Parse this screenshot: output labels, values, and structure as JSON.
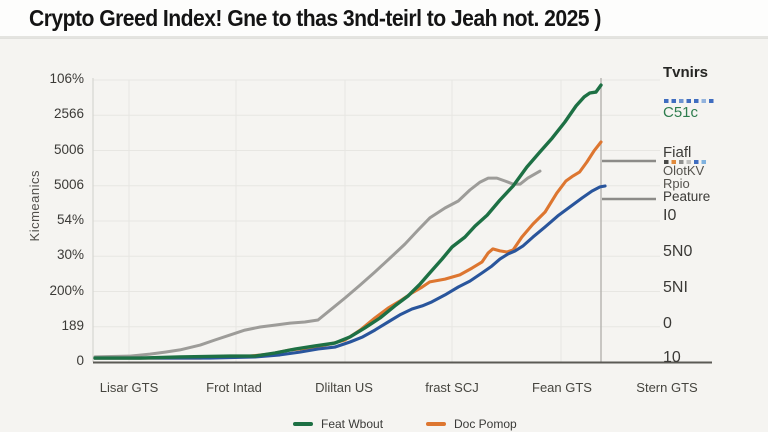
{
  "title": "Crypto Greed Index! Gne to thas 3nd-teirl to Jeah not. 2025 )",
  "y_axis": {
    "label": "Kicmeanics",
    "ticks": [
      "106%",
      "2566",
      "5006",
      "5006",
      "54%",
      "30%",
      "200%",
      "189",
      "0"
    ]
  },
  "x_axis": {
    "ticks": [
      "Lisar GTS",
      "Frot Intad",
      "Dliltan US",
      "frast SCJ",
      "Fean GTS",
      "Stern GTS"
    ]
  },
  "right_panel": {
    "header": "Tvnirs",
    "entry_c51c": "C51c",
    "entry_c51c_color": "#2e7d4e",
    "entry_fiafl": "Fiafl",
    "entry_olotkv": "OlotKV",
    "entry_rpio": "Rpio",
    "entry_peature": "Peature",
    "ticks": [
      "I0",
      "5N0",
      "5NI",
      "0",
      "10"
    ],
    "dash_color": "#8c8b88",
    "dashes": [
      {
        "y": 161
      },
      {
        "y": 199
      }
    ],
    "dotted_rows": [
      {
        "y": 101,
        "colors": [
          "#3f6dc0",
          "#3f6dc0",
          "#6d93cf",
          "#3f6dc0",
          "#3f6dc0",
          "#93b3dd",
          "#3f6dc0"
        ]
      },
      {
        "y": 162,
        "colors": [
          "#4a4a48",
          "#e08a3c",
          "#8f8f8d",
          "#c0c0be",
          "#3f6dc0",
          "#7fb2df"
        ]
      }
    ]
  },
  "legend": {
    "items": [
      {
        "label": "Feat Wbout",
        "color": "#1d7044"
      },
      {
        "label": "Doc Pomop",
        "color": "#dd7630"
      }
    ]
  },
  "chart_data": {
    "type": "line",
    "title": "Crypto Greed Index! Gne to thas 3nd-teirl to Jeah not. 2025 )",
    "xlabel": "",
    "ylabel": "Kicmeanics",
    "categories": [
      "Lisar GTS",
      "Frot Intad",
      "Dliltan US",
      "frast SCJ",
      "Fean GTS",
      "Stern GTS"
    ],
    "y_tick_labels": [
      "0",
      "189",
      "200%",
      "30%",
      "54%",
      "5006",
      "5006",
      "2566",
      "106%"
    ],
    "grid": true,
    "legend_position": "bottom and right panel",
    "value_units": "percent of plot height (axis labels are unreadable/garbled)",
    "series": [
      {
        "name": "unlabeled-gray",
        "color": "#9d9c99",
        "width": 3,
        "values_pct_at_categories": [
          2,
          10,
          23,
          56,
          null,
          null
        ],
        "points": [
          [
            0.004,
            1.8
          ],
          [
            0.073,
            2.1
          ],
          [
            0.112,
            2.8
          ],
          [
            0.142,
            3.5
          ],
          [
            0.171,
            4.3
          ],
          [
            0.211,
            6.0
          ],
          [
            0.24,
            7.8
          ],
          [
            0.27,
            9.6
          ],
          [
            0.299,
            11.3
          ],
          [
            0.329,
            12.4
          ],
          [
            0.358,
            13.1
          ],
          [
            0.388,
            13.8
          ],
          [
            0.417,
            14.2
          ],
          [
            0.443,
            14.9
          ],
          [
            0.467,
            18.4
          ],
          [
            0.496,
            22.7
          ],
          [
            0.526,
            27.3
          ],
          [
            0.555,
            31.9
          ],
          [
            0.585,
            36.9
          ],
          [
            0.614,
            41.8
          ],
          [
            0.64,
            46.8
          ],
          [
            0.663,
            51.1
          ],
          [
            0.693,
            54.6
          ],
          [
            0.719,
            57.1
          ],
          [
            0.742,
            61.0
          ],
          [
            0.762,
            63.8
          ],
          [
            0.778,
            65.2
          ],
          [
            0.795,
            65.2
          ],
          [
            0.811,
            64.2
          ],
          [
            0.827,
            63.1
          ],
          [
            0.841,
            63.1
          ],
          [
            0.856,
            65.2
          ],
          [
            0.87,
            66.7
          ],
          [
            0.88,
            67.7
          ]
        ]
      },
      {
        "name": "Doc Pomop",
        "color": "#dd7630",
        "width": 3.1,
        "values_pct_at_categories": [
          1,
          2,
          8,
          30,
          62,
          null
        ],
        "points": [
          [
            0.004,
            1.4
          ],
          [
            0.211,
            1.4
          ],
          [
            0.309,
            2.1
          ],
          [
            0.348,
            2.8
          ],
          [
            0.388,
            4.3
          ],
          [
            0.427,
            5.0
          ],
          [
            0.467,
            6.4
          ],
          [
            0.496,
            7.8
          ],
          [
            0.526,
            11.3
          ],
          [
            0.555,
            15.6
          ],
          [
            0.581,
            19.1
          ],
          [
            0.604,
            21.6
          ],
          [
            0.628,
            24.5
          ],
          [
            0.648,
            26.6
          ],
          [
            0.663,
            28.4
          ],
          [
            0.693,
            29.4
          ],
          [
            0.722,
            30.9
          ],
          [
            0.746,
            33.3
          ],
          [
            0.766,
            35.5
          ],
          [
            0.778,
            38.7
          ],
          [
            0.787,
            40.1
          ],
          [
            0.801,
            39.4
          ],
          [
            0.815,
            39.0
          ],
          [
            0.827,
            39.7
          ],
          [
            0.844,
            44.3
          ],
          [
            0.866,
            48.9
          ],
          [
            0.89,
            53.2
          ],
          [
            0.913,
            59.9
          ],
          [
            0.931,
            64.2
          ],
          [
            0.945,
            66.0
          ],
          [
            0.958,
            67.4
          ],
          [
            0.972,
            70.9
          ],
          [
            0.986,
            74.8
          ],
          [
            1.0,
            78.0
          ]
        ]
      },
      {
        "name": "unlabeled-blue",
        "color": "#29559c",
        "width": 3.1,
        "values_pct_at_categories": [
          1,
          2,
          6,
          25,
          53,
          null
        ],
        "points": [
          [
            0.004,
            1.4
          ],
          [
            0.23,
            1.4
          ],
          [
            0.319,
            1.8
          ],
          [
            0.368,
            2.5
          ],
          [
            0.407,
            3.5
          ],
          [
            0.443,
            4.6
          ],
          [
            0.476,
            5.3
          ],
          [
            0.506,
            7.1
          ],
          [
            0.531,
            8.9
          ],
          [
            0.555,
            11.3
          ],
          [
            0.581,
            14.2
          ],
          [
            0.604,
            16.7
          ],
          [
            0.628,
            18.8
          ],
          [
            0.648,
            19.9
          ],
          [
            0.667,
            21.3
          ],
          [
            0.693,
            23.8
          ],
          [
            0.719,
            26.6
          ],
          [
            0.742,
            28.7
          ],
          [
            0.766,
            31.6
          ],
          [
            0.785,
            34.0
          ],
          [
            0.801,
            36.5
          ],
          [
            0.817,
            38.3
          ],
          [
            0.831,
            39.4
          ],
          [
            0.846,
            41.1
          ],
          [
            0.866,
            44.3
          ],
          [
            0.89,
            47.9
          ],
          [
            0.915,
            51.8
          ],
          [
            0.939,
            55.0
          ],
          [
            0.963,
            58.2
          ],
          [
            0.982,
            60.6
          ],
          [
            0.998,
            62.1
          ],
          [
            1.008,
            62.4
          ]
        ]
      },
      {
        "name": "Feat Wbout",
        "color": "#1d7044",
        "width": 3.4,
        "values_pct_at_categories": [
          1,
          2,
          8,
          41,
          83,
          null
        ],
        "points": [
          [
            0.004,
            1.4
          ],
          [
            0.093,
            1.4
          ],
          [
            0.171,
            1.8
          ],
          [
            0.27,
            2.1
          ],
          [
            0.319,
            2.1
          ],
          [
            0.358,
            3.2
          ],
          [
            0.398,
            4.6
          ],
          [
            0.437,
            5.7
          ],
          [
            0.476,
            6.7
          ],
          [
            0.506,
            8.9
          ],
          [
            0.535,
            12.1
          ],
          [
            0.565,
            15.6
          ],
          [
            0.594,
            19.9
          ],
          [
            0.62,
            23.4
          ],
          [
            0.644,
            27.7
          ],
          [
            0.663,
            31.6
          ],
          [
            0.687,
            36.5
          ],
          [
            0.707,
            40.8
          ],
          [
            0.732,
            44.3
          ],
          [
            0.752,
            48.2
          ],
          [
            0.776,
            52.1
          ],
          [
            0.801,
            57.4
          ],
          [
            0.827,
            62.4
          ],
          [
            0.854,
            69.1
          ],
          [
            0.88,
            74.5
          ],
          [
            0.904,
            79.4
          ],
          [
            0.929,
            85.1
          ],
          [
            0.951,
            90.8
          ],
          [
            0.967,
            94.0
          ],
          [
            0.978,
            95.4
          ],
          [
            0.99,
            95.7
          ],
          [
            1.0,
            98.2
          ]
        ]
      }
    ]
  }
}
